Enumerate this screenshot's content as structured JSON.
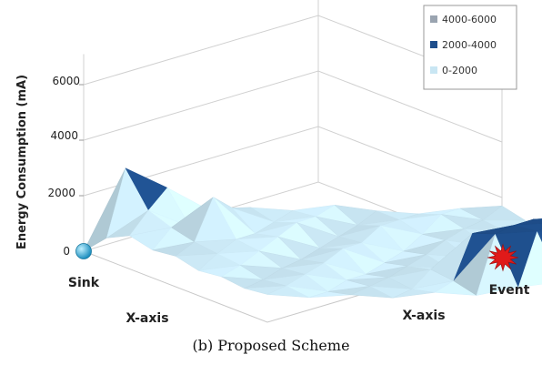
{
  "chart_data": {
    "type": "surface",
    "ylabel": "Energy Consumption (mA)",
    "x1label": "X-axis",
    "x2label": "X-axis",
    "y_ticks": [
      "0",
      "2000",
      "4000",
      "6000"
    ],
    "ylim": [
      0,
      6000
    ],
    "legend": {
      "position": "top-right",
      "entries": [
        {
          "label": "4000-6000",
          "color": "#9aa4b0"
        },
        {
          "label": "2000-4000",
          "color": "#1f4f8c"
        },
        {
          "label": "0-2000",
          "color": "#c9e6f3"
        }
      ]
    },
    "annotations": {
      "sink": "Sink",
      "event": "Event"
    },
    "surface_z": [
      [
        0,
        3000,
        2300,
        1500,
        1600,
        1500,
        1700,
        1500,
        1400,
        1600,
        1700
      ],
      [
        800,
        1800,
        1200,
        1900,
        1400,
        1600,
        1300,
        1500,
        1700,
        1500,
        1500
      ],
      [
        1200,
        1500,
        2600,
        1300,
        1700,
        1200,
        1600,
        1300,
        1500,
        1400,
        1300
      ],
      [
        1000,
        1300,
        1400,
        1500,
        1100,
        1300,
        1000,
        1400,
        1200,
        1300,
        1400
      ],
      [
        1100,
        1200,
        1300,
        1000,
        1400,
        900,
        1200,
        1100,
        1500,
        2300,
        1500
      ],
      [
        900,
        1100,
        1000,
        1200,
        800,
        1100,
        1000,
        1900,
        2800,
        2900,
        1400
      ],
      [
        1000,
        900,
        1100,
        900,
        1000,
        1300,
        2600,
        2900,
        3000,
        2800,
        1200
      ],
      [
        900,
        1000,
        800,
        1000,
        900,
        1200,
        2900,
        3000,
        2900,
        2200,
        1100
      ],
      [
        1000,
        900,
        1000,
        900,
        1100,
        1000,
        1300,
        1500,
        1100,
        1000,
        1200
      ]
    ]
  },
  "caption": "(b) Proposed Scheme",
  "colors": {
    "sink_marker": "#3fb8de",
    "event_marker": "#e01a1a"
  }
}
